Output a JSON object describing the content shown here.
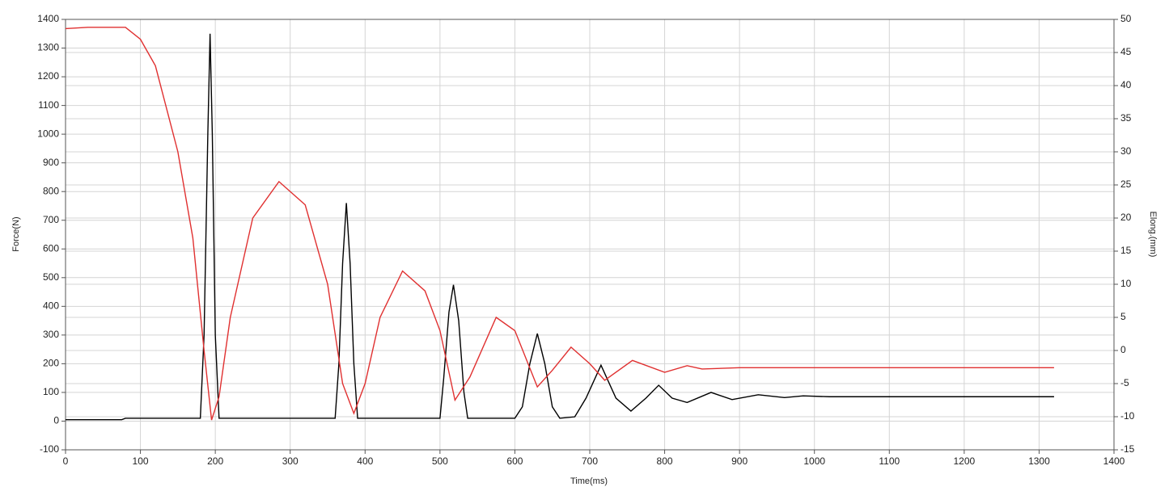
{
  "chart_data": {
    "type": "line",
    "x_label": "Time(ms)",
    "y_label": "Force(N)",
    "y2_label": "Elong.(mm)",
    "xlim": [
      0,
      1400
    ],
    "xticks": [
      0,
      100,
      200,
      300,
      400,
      500,
      600,
      700,
      800,
      900,
      1000,
      1100,
      1200,
      1300,
      1400
    ],
    "ylim": [
      -100,
      1400
    ],
    "yticks": [
      -100,
      0,
      100,
      200,
      300,
      400,
      500,
      600,
      700,
      800,
      900,
      1000,
      1100,
      1200,
      1300,
      1400
    ],
    "y2lim": [
      -15,
      50
    ],
    "y2ticks": [
      -15,
      -10,
      -5,
      0,
      5,
      10,
      15,
      20,
      25,
      30,
      35,
      40,
      45,
      50
    ],
    "grid": true,
    "series": [
      {
        "color": "#000000",
        "axis": "y",
        "x": [
          0,
          75,
          80,
          180,
          185,
          190,
          193,
          196,
          200,
          205,
          360,
          365,
          370,
          375,
          380,
          385,
          390,
          500,
          505,
          512,
          518,
          525,
          532,
          537,
          600,
          610,
          620,
          630,
          640,
          650,
          660,
          680,
          695,
          715,
          735,
          755,
          775,
          792,
          810,
          830,
          862,
          890,
          925,
          960,
          985,
          1020,
          1320
        ],
        "values": [
          5,
          5,
          10,
          10,
          300,
          1000,
          1350,
          1000,
          300,
          10,
          10,
          200,
          550,
          760,
          550,
          200,
          10,
          10,
          150,
          380,
          475,
          350,
          100,
          10,
          10,
          50,
          200,
          305,
          200,
          50,
          10,
          15,
          80,
          195,
          80,
          35,
          80,
          125,
          80,
          65,
          100,
          75,
          92,
          82,
          88,
          85,
          85
        ]
      },
      {
        "color": "#e03030",
        "axis": "y2",
        "x": [
          0,
          30,
          80,
          100,
          120,
          150,
          170,
          185,
          195,
          205,
          220,
          250,
          285,
          320,
          350,
          370,
          385,
          400,
          420,
          450,
          480,
          500,
          520,
          540,
          575,
          600,
          630,
          650,
          675,
          700,
          720,
          757,
          800,
          830,
          850,
          900,
          1320
        ],
        "values": [
          48.6,
          48.8,
          48.8,
          47,
          43,
          30,
          17,
          0,
          -10.5,
          -7,
          5,
          20,
          25.5,
          22,
          10,
          -5,
          -9.5,
          -5,
          5,
          12,
          9,
          3,
          -7.5,
          -4,
          5,
          3,
          -5.5,
          -3,
          0.5,
          -2,
          -4.5,
          -1.5,
          -3.3,
          -2.3,
          -2.8,
          -2.6,
          -2.6
        ]
      }
    ]
  }
}
